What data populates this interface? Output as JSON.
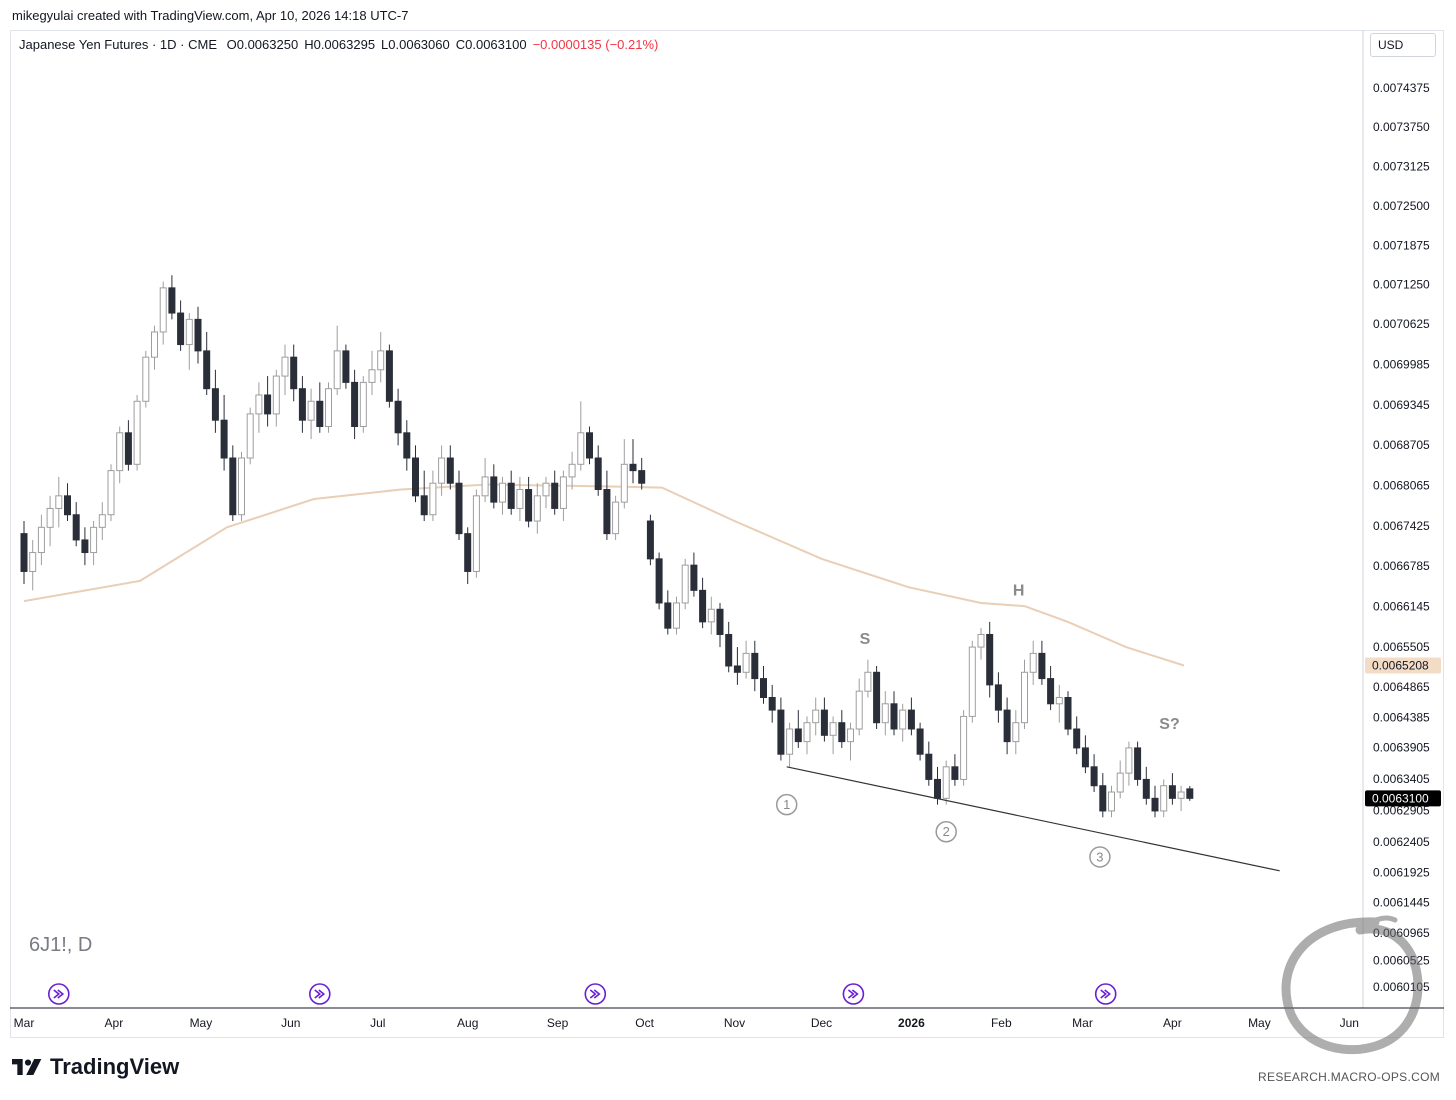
{
  "attribution": "mikegyulai created with TradingView.com, Apr 10, 2026 14:18 UTC-7",
  "legend": {
    "instrument": "Japanese Yen Futures · 1D · CME",
    "open": "O0.0063250",
    "high": "H0.0063295",
    "low": "L0.0063060",
    "close": "C0.0063100",
    "change": "−0.0000135 (−0.21%)",
    "change_color": "#f23645"
  },
  "currency": "USD",
  "symbol_watermark": "6J1!, D",
  "brand": "TradingView",
  "footer_url": "RESEARCH.MACRO-OPS.COM",
  "chart_data": {
    "type": "candlestick",
    "title": "Japanese Yen Futures · 1D · CME",
    "y_axis": {
      "ylim": [
        0.005995,
        0.0075
      ],
      "tick_labels": [
        "0.0074375",
        "0.0073750",
        "0.0073125",
        "0.0072500",
        "0.0071875",
        "0.0071250",
        "0.0070625",
        "0.0069985",
        "0.0069345",
        "0.0068705",
        "0.0068065",
        "0.0067425",
        "0.0066785",
        "0.0066145",
        "0.0065505",
        "0.0064865",
        "0.0064385",
        "0.0063905",
        "0.0063405",
        "0.0062905",
        "0.0062405",
        "0.0061925",
        "0.0061445",
        "0.0060965",
        "0.0060525",
        "0.0060105"
      ],
      "price_tags": [
        {
          "value": "0.0065208",
          "price": 0.0065208,
          "bg": "#f2dcc5",
          "fg": "#131722"
        },
        {
          "value": "0.0063100",
          "price": 0.00631,
          "bg": "#000000",
          "fg": "#ffffff"
        }
      ]
    },
    "x_axis": {
      "labels": [
        {
          "text": "Mar",
          "day": 0
        },
        {
          "text": "Apr",
          "day": 31
        },
        {
          "text": "May",
          "day": 61
        },
        {
          "text": "Jun",
          "day": 92
        },
        {
          "text": "Jul",
          "day": 122
        },
        {
          "text": "Aug",
          "day": 153
        },
        {
          "text": "Sep",
          "day": 184
        },
        {
          "text": "Oct",
          "day": 214
        },
        {
          "text": "Nov",
          "day": 245
        },
        {
          "text": "Dec",
          "day": 275
        },
        {
          "text": "2026",
          "day": 306,
          "bold": true
        },
        {
          "text": "Feb",
          "day": 337
        },
        {
          "text": "Mar",
          "day": 365
        },
        {
          "text": "Apr",
          "day": 396
        },
        {
          "text": "May",
          "day": 426
        },
        {
          "text": "Jun",
          "day": 457
        }
      ]
    },
    "moving_average": {
      "color": "#e8cfb6",
      "points": [
        [
          0,
          0.006623
        ],
        [
          40,
          0.006655
        ],
        [
          70,
          0.00674
        ],
        [
          100,
          0.006785
        ],
        [
          130,
          0.0068
        ],
        [
          160,
          0.006808
        ],
        [
          200,
          0.006805
        ],
        [
          220,
          0.006803
        ],
        [
          245,
          0.00675
        ],
        [
          275,
          0.00669
        ],
        [
          305,
          0.006645
        ],
        [
          330,
          0.00662
        ],
        [
          345,
          0.006615
        ],
        [
          360,
          0.00659
        ],
        [
          380,
          0.00655
        ],
        [
          400,
          0.0065208
        ]
      ]
    },
    "trendline": {
      "color": "#333333",
      "from": [
        263,
        0.00636
      ],
      "to": [
        433,
        0.006195
      ]
    },
    "annotations": [
      {
        "text": "S",
        "day": 290,
        "price": 0.006555
      },
      {
        "text": "H",
        "day": 343,
        "price": 0.006632
      },
      {
        "text": "S?",
        "day": 395,
        "price": 0.00642
      }
    ],
    "wave_labels": [
      {
        "text": "1",
        "day": 263,
        "price": 0.0063
      },
      {
        "text": "2",
        "day": 318,
        "price": 0.006257
      },
      {
        "text": "3",
        "day": 371,
        "price": 0.006217
      }
    ],
    "event_markers": [
      12,
      102,
      197,
      286,
      373
    ],
    "ohlc": [
      [
        0,
        0.00673,
        0.00675,
        0.00665,
        0.00667
      ],
      [
        3,
        0.00667,
        0.00672,
        0.00664,
        0.0067
      ],
      [
        6,
        0.0067,
        0.00676,
        0.00668,
        0.00674
      ],
      [
        9,
        0.00674,
        0.00679,
        0.00671,
        0.00677
      ],
      [
        12,
        0.00677,
        0.00682,
        0.00674,
        0.00679
      ],
      [
        15,
        0.00679,
        0.00681,
        0.00675,
        0.00676
      ],
      [
        18,
        0.00676,
        0.00678,
        0.00671,
        0.00672
      ],
      [
        21,
        0.00672,
        0.00674,
        0.00668,
        0.0067
      ],
      [
        24,
        0.0067,
        0.00675,
        0.00668,
        0.00674
      ],
      [
        27,
        0.00674,
        0.00678,
        0.00672,
        0.00676
      ],
      [
        30,
        0.00676,
        0.00684,
        0.00675,
        0.00683
      ],
      [
        33,
        0.00683,
        0.0069,
        0.00681,
        0.00689
      ],
      [
        36,
        0.00689,
        0.00691,
        0.00683,
        0.00684
      ],
      [
        39,
        0.00684,
        0.00695,
        0.00683,
        0.00694
      ],
      [
        42,
        0.00694,
        0.00702,
        0.00693,
        0.00701
      ],
      [
        45,
        0.00701,
        0.00706,
        0.00699,
        0.00705
      ],
      [
        48,
        0.00705,
        0.00713,
        0.00703,
        0.00712
      ],
      [
        51,
        0.00712,
        0.00714,
        0.00707,
        0.00708
      ],
      [
        54,
        0.00708,
        0.0071,
        0.00702,
        0.00703
      ],
      [
        57,
        0.00703,
        0.00708,
        0.00699,
        0.00707
      ],
      [
        60,
        0.00707,
        0.00709,
        0.007,
        0.00702
      ],
      [
        63,
        0.00702,
        0.00705,
        0.00695,
        0.00696
      ],
      [
        66,
        0.00696,
        0.00699,
        0.00689,
        0.00691
      ],
      [
        69,
        0.00691,
        0.00695,
        0.00683,
        0.00685
      ],
      [
        72,
        0.00685,
        0.00687,
        0.00675,
        0.00676
      ],
      [
        75,
        0.00676,
        0.00686,
        0.00675,
        0.00685
      ],
      [
        78,
        0.00685,
        0.00693,
        0.00684,
        0.00692
      ],
      [
        81,
        0.00692,
        0.00697,
        0.00689,
        0.00695
      ],
      [
        84,
        0.00695,
        0.00698,
        0.0069,
        0.00692
      ],
      [
        87,
        0.00692,
        0.00699,
        0.0069,
        0.00698
      ],
      [
        90,
        0.00698,
        0.00703,
        0.00695,
        0.00701
      ],
      [
        93,
        0.00701,
        0.00703,
        0.00694,
        0.00696
      ],
      [
        96,
        0.00696,
        0.00698,
        0.00689,
        0.00691
      ],
      [
        99,
        0.00691,
        0.00696,
        0.00688,
        0.00694
      ],
      [
        102,
        0.00694,
        0.00697,
        0.00689,
        0.0069
      ],
      [
        105,
        0.0069,
        0.00697,
        0.00689,
        0.00696
      ],
      [
        108,
        0.00696,
        0.00706,
        0.00695,
        0.00702
      ],
      [
        111,
        0.00702,
        0.00703,
        0.00696,
        0.00697
      ],
      [
        114,
        0.00697,
        0.00699,
        0.00688,
        0.0069
      ],
      [
        117,
        0.0069,
        0.00698,
        0.00689,
        0.00697
      ],
      [
        120,
        0.00697,
        0.00702,
        0.00695,
        0.00699
      ],
      [
        123,
        0.00699,
        0.00705,
        0.00697,
        0.00702
      ],
      [
        126,
        0.00702,
        0.00703,
        0.00693,
        0.00694
      ],
      [
        129,
        0.00694,
        0.00696,
        0.00687,
        0.00689
      ],
      [
        132,
        0.00689,
        0.00691,
        0.00683,
        0.00685
      ],
      [
        135,
        0.00685,
        0.00687,
        0.00678,
        0.00679
      ],
      [
        138,
        0.00679,
        0.00683,
        0.00675,
        0.00676
      ],
      [
        141,
        0.00676,
        0.00683,
        0.00675,
        0.00681
      ],
      [
        144,
        0.00681,
        0.00687,
        0.00679,
        0.00685
      ],
      [
        147,
        0.00685,
        0.00687,
        0.0068,
        0.00681
      ],
      [
        150,
        0.00681,
        0.00683,
        0.00672,
        0.00673
      ],
      [
        153,
        0.00673,
        0.00674,
        0.00665,
        0.00667
      ],
      [
        156,
        0.00667,
        0.0068,
        0.00666,
        0.00679
      ],
      [
        159,
        0.00679,
        0.00685,
        0.00678,
        0.00682
      ],
      [
        162,
        0.00682,
        0.00684,
        0.00677,
        0.00678
      ],
      [
        165,
        0.00678,
        0.00682,
        0.00676,
        0.00681
      ],
      [
        168,
        0.00681,
        0.00683,
        0.00676,
        0.00677
      ],
      [
        171,
        0.00677,
        0.00682,
        0.00675,
        0.0068
      ],
      [
        174,
        0.0068,
        0.00682,
        0.00674,
        0.00675
      ],
      [
        177,
        0.00675,
        0.00681,
        0.00673,
        0.00679
      ],
      [
        180,
        0.00679,
        0.00682,
        0.00677,
        0.00681
      ],
      [
        183,
        0.00681,
        0.00683,
        0.00676,
        0.00677
      ],
      [
        186,
        0.00677,
        0.00683,
        0.00675,
        0.00682
      ],
      [
        189,
        0.00682,
        0.00686,
        0.0068,
        0.00684
      ],
      [
        192,
        0.00684,
        0.00694,
        0.00683,
        0.00689
      ],
      [
        195,
        0.00689,
        0.0069,
        0.00684,
        0.00685
      ],
      [
        198,
        0.00685,
        0.00687,
        0.00679,
        0.0068
      ],
      [
        201,
        0.0068,
        0.00683,
        0.00672,
        0.00673
      ],
      [
        204,
        0.00673,
        0.00679,
        0.00672,
        0.00678
      ],
      [
        207,
        0.00678,
        0.00688,
        0.00677,
        0.00684
      ],
      [
        210,
        0.00684,
        0.00688,
        0.00681,
        0.00683
      ],
      [
        213,
        0.00683,
        0.00685,
        0.0068,
        0.00681
      ],
      [
        216,
        0.00675,
        0.00676,
        0.00668,
        0.00669
      ],
      [
        219,
        0.00669,
        0.0067,
        0.00661,
        0.00662
      ],
      [
        222,
        0.00662,
        0.00664,
        0.00657,
        0.00658
      ],
      [
        225,
        0.00658,
        0.00663,
        0.00657,
        0.00662
      ],
      [
        228,
        0.00662,
        0.00669,
        0.00661,
        0.00668
      ],
      [
        231,
        0.00668,
        0.0067,
        0.00663,
        0.00664
      ],
      [
        234,
        0.00664,
        0.00666,
        0.00658,
        0.00659
      ],
      [
        237,
        0.00659,
        0.00663,
        0.00657,
        0.00661
      ],
      [
        240,
        0.00661,
        0.00662,
        0.00655,
        0.00657
      ],
      [
        243,
        0.00657,
        0.00659,
        0.00651,
        0.00652
      ],
      [
        246,
        0.00652,
        0.00655,
        0.00649,
        0.00651
      ],
      [
        249,
        0.00651,
        0.00656,
        0.0065,
        0.00654
      ],
      [
        252,
        0.00654,
        0.00656,
        0.00648,
        0.0065
      ],
      [
        255,
        0.0065,
        0.00652,
        0.00646,
        0.00647
      ],
      [
        258,
        0.00647,
        0.00649,
        0.00643,
        0.00645
      ],
      [
        261,
        0.00645,
        0.00647,
        0.00637,
        0.00638
      ],
      [
        264,
        0.00638,
        0.00643,
        0.00636,
        0.00642
      ],
      [
        267,
        0.00642,
        0.00645,
        0.00639,
        0.0064
      ],
      [
        270,
        0.0064,
        0.00644,
        0.00638,
        0.00643
      ],
      [
        273,
        0.00643,
        0.00647,
        0.00641,
        0.00645
      ],
      [
        276,
        0.00645,
        0.00647,
        0.0064,
        0.00641
      ],
      [
        279,
        0.00641,
        0.00644,
        0.00638,
        0.00643
      ],
      [
        282,
        0.00643,
        0.00645,
        0.00639,
        0.0064
      ],
      [
        285,
        0.0064,
        0.00643,
        0.00637,
        0.00642
      ],
      [
        288,
        0.00642,
        0.0065,
        0.00641,
        0.00648
      ],
      [
        291,
        0.00648,
        0.00653,
        0.00647,
        0.00651
      ],
      [
        294,
        0.00651,
        0.00652,
        0.00642,
        0.00643
      ],
      [
        297,
        0.00643,
        0.00648,
        0.00641,
        0.00646
      ],
      [
        300,
        0.00646,
        0.00648,
        0.00641,
        0.00642
      ],
      [
        303,
        0.00642,
        0.00646,
        0.0064,
        0.00645
      ],
      [
        306,
        0.00645,
        0.00647,
        0.00641,
        0.00642
      ],
      [
        309,
        0.00642,
        0.00643,
        0.00637,
        0.00638
      ],
      [
        312,
        0.00638,
        0.0064,
        0.00633,
        0.00634
      ],
      [
        315,
        0.00634,
        0.00636,
        0.0063,
        0.00631
      ],
      [
        318,
        0.00631,
        0.00637,
        0.0063,
        0.00636
      ],
      [
        321,
        0.00636,
        0.00638,
        0.00633,
        0.00634
      ],
      [
        324,
        0.00634,
        0.00645,
        0.00633,
        0.00644
      ],
      [
        327,
        0.00644,
        0.00656,
        0.00643,
        0.00655
      ],
      [
        330,
        0.00655,
        0.00658,
        0.00653,
        0.00657
      ],
      [
        333,
        0.00657,
        0.00659,
        0.00647,
        0.00649
      ],
      [
        336,
        0.00649,
        0.00651,
        0.00643,
        0.00645
      ],
      [
        339,
        0.00645,
        0.00647,
        0.00638,
        0.0064
      ],
      [
        342,
        0.0064,
        0.00645,
        0.00638,
        0.00643
      ],
      [
        345,
        0.00643,
        0.00653,
        0.00642,
        0.00651
      ],
      [
        348,
        0.00651,
        0.00656,
        0.00649,
        0.00654
      ],
      [
        351,
        0.00654,
        0.00656,
        0.00649,
        0.0065
      ],
      [
        354,
        0.0065,
        0.00652,
        0.00645,
        0.00646
      ],
      [
        357,
        0.00646,
        0.00649,
        0.00643,
        0.00647
      ],
      [
        360,
        0.00647,
        0.00648,
        0.00641,
        0.00642
      ],
      [
        363,
        0.00642,
        0.00644,
        0.00638,
        0.00639
      ],
      [
        366,
        0.00639,
        0.00641,
        0.00635,
        0.00636
      ],
      [
        369,
        0.00636,
        0.00638,
        0.00632,
        0.00633
      ],
      [
        372,
        0.00633,
        0.00635,
        0.00628,
        0.00629
      ],
      [
        375,
        0.00629,
        0.00633,
        0.00628,
        0.00632
      ],
      [
        378,
        0.00632,
        0.00637,
        0.00631,
        0.00635
      ],
      [
        381,
        0.00635,
        0.0064,
        0.00633,
        0.00639
      ],
      [
        384,
        0.00639,
        0.0064,
        0.00633,
        0.00634
      ],
      [
        387,
        0.00634,
        0.00636,
        0.0063,
        0.00631
      ],
      [
        390,
        0.00631,
        0.00633,
        0.00628,
        0.00629
      ],
      [
        393,
        0.00629,
        0.00634,
        0.00628,
        0.00633
      ],
      [
        396,
        0.00633,
        0.00635,
        0.0063,
        0.00631
      ],
      [
        399,
        0.00631,
        0.00633,
        0.00629,
        0.00632
      ],
      [
        402,
        0.006325,
        0.0063295,
        0.006306,
        0.00631
      ]
    ]
  }
}
